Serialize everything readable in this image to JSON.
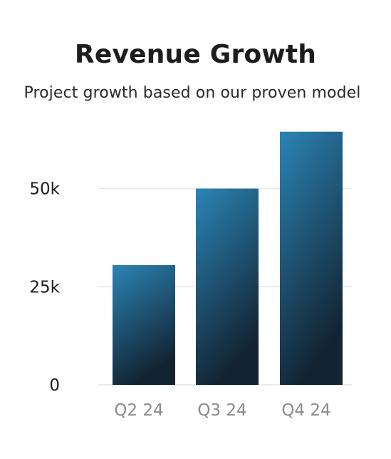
{
  "chart_data": {
    "type": "bar",
    "title": "Revenue Growth",
    "subtitle": "Project growth based on our proven model",
    "categories": [
      "Q2 24",
      "Q3 24",
      "Q4 24"
    ],
    "values": [
      30500,
      50000,
      64500
    ],
    "yticks": [
      {
        "value": 0,
        "label": "0"
      },
      {
        "value": 25000,
        "label": "25k"
      },
      {
        "value": 50000,
        "label": "50k"
      }
    ],
    "ylim": [
      0,
      65000
    ],
    "xlabel": "",
    "ylabel": "",
    "grid": true,
    "colors": {
      "bar_top": "#2b84b6",
      "bar_bottom": "#122331",
      "grid": "#e6e6e6"
    }
  }
}
